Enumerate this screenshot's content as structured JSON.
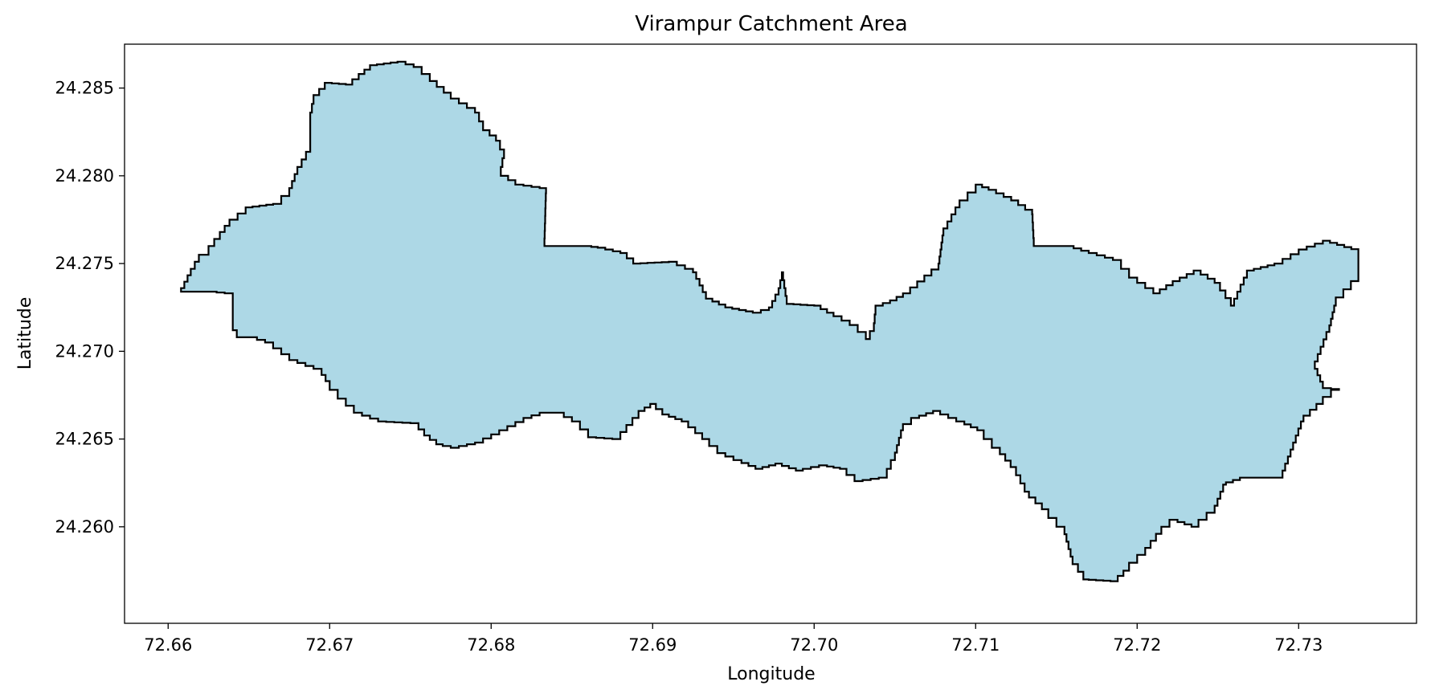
{
  "chart_data": {
    "type": "map",
    "title": "Virampur Catchment Area",
    "xlabel": "Longitude",
    "ylabel": "Latitude",
    "xlim": [
      72.6573,
      72.7373
    ],
    "ylim": [
      24.2545,
      24.2875
    ],
    "xticks": [
      "72.66",
      "72.67",
      "72.68",
      "72.69",
      "72.70",
      "72.71",
      "72.72",
      "72.73"
    ],
    "yticks": [
      "24.260",
      "24.265",
      "24.270",
      "24.275",
      "24.280",
      "24.285"
    ],
    "grid": false,
    "legend": "none",
    "fill_color": "#add8e6",
    "edge_color": "#000000",
    "polygon": [
      [
        72.6608,
        24.2736
      ],
      [
        72.6614,
        24.2747
      ],
      [
        72.6619,
        24.2755
      ],
      [
        72.6625,
        24.276
      ],
      [
        72.6632,
        24.2768
      ],
      [
        72.6638,
        24.2775
      ],
      [
        72.6648,
        24.2782
      ],
      [
        72.6665,
        24.2784
      ],
      [
        72.6675,
        24.2793
      ],
      [
        72.668,
        24.2805
      ],
      [
        72.6688,
        24.2818
      ],
      [
        72.6688,
        24.2836
      ],
      [
        72.669,
        24.2846
      ],
      [
        72.6697,
        24.2853
      ],
      [
        72.671,
        24.2852
      ],
      [
        72.6718,
        24.2858
      ],
      [
        72.6725,
        24.2863
      ],
      [
        72.6742,
        24.2865
      ],
      [
        72.6752,
        24.2862
      ],
      [
        72.6762,
        24.2854
      ],
      [
        72.6775,
        24.2844
      ],
      [
        72.679,
        24.2836
      ],
      [
        72.6795,
        24.2826
      ],
      [
        72.6803,
        24.282
      ],
      [
        72.6808,
        24.281
      ],
      [
        72.6806,
        24.28
      ],
      [
        72.6815,
        24.2795
      ],
      [
        72.683,
        24.2793
      ],
      [
        72.6834,
        24.279
      ],
      [
        72.6833,
        24.276
      ],
      [
        72.6858,
        24.276
      ],
      [
        72.6866,
        24.2759
      ],
      [
        72.688,
        24.2756
      ],
      [
        72.6888,
        24.275
      ],
      [
        72.691,
        24.2751
      ],
      [
        72.6925,
        24.2745
      ],
      [
        72.6933,
        24.273
      ],
      [
        72.6945,
        24.2725
      ],
      [
        72.6962,
        24.2722
      ],
      [
        72.6972,
        24.2725
      ],
      [
        72.6978,
        24.2736
      ],
      [
        72.698,
        24.2745
      ],
      [
        72.6983,
        24.2727
      ],
      [
        72.7,
        24.2726
      ],
      [
        72.7012,
        24.272
      ],
      [
        72.7022,
        24.2715
      ],
      [
        72.7032,
        24.2707
      ],
      [
        72.7037,
        24.2716
      ],
      [
        72.7038,
        24.2726
      ],
      [
        72.7047,
        24.2729
      ],
      [
        72.7055,
        24.2733
      ],
      [
        72.7077,
        24.275
      ],
      [
        72.708,
        24.277
      ],
      [
        72.709,
        24.2786
      ],
      [
        72.71,
        24.2795
      ],
      [
        72.7108,
        24.2792
      ],
      [
        72.7122,
        24.2786
      ],
      [
        72.7135,
        24.2778
      ],
      [
        72.7136,
        24.276
      ],
      [
        72.7156,
        24.276
      ],
      [
        72.717,
        24.2756
      ],
      [
        72.7185,
        24.2752
      ],
      [
        72.7195,
        24.2742
      ],
      [
        72.721,
        24.2733
      ],
      [
        72.7222,
        24.274
      ],
      [
        72.7235,
        24.2746
      ],
      [
        72.7248,
        24.2739
      ],
      [
        72.7258,
        24.2726
      ],
      [
        72.7268,
        24.2746
      ],
      [
        72.7285,
        24.275
      ],
      [
        72.73,
        24.2758
      ],
      [
        72.7315,
        24.2763
      ],
      [
        72.7337,
        24.2757
      ],
      [
        72.7337,
        24.274
      ],
      [
        72.7323,
        24.2726
      ],
      [
        72.7319,
        24.2711
      ],
      [
        72.731,
        24.269
      ],
      [
        72.7315,
        24.2679
      ],
      [
        72.7325,
        24.2678
      ],
      [
        72.7315,
        24.267
      ],
      [
        72.7303,
        24.266
      ],
      [
        72.7295,
        24.264
      ],
      [
        72.729,
        24.2628
      ],
      [
        72.7268,
        24.2628
      ],
      [
        72.7255,
        24.2624
      ],
      [
        72.7248,
        24.2608
      ],
      [
        72.7238,
        24.26
      ],
      [
        72.7225,
        24.2604
      ],
      [
        72.7215,
        24.2596
      ],
      [
        72.7205,
        24.2584
      ],
      [
        72.7195,
        24.2575
      ],
      [
        72.7188,
        24.2569
      ],
      [
        72.717,
        24.257
      ],
      [
        72.716,
        24.2583
      ],
      [
        72.7155,
        24.26
      ],
      [
        72.7145,
        24.261
      ],
      [
        72.7133,
        24.262
      ],
      [
        72.7125,
        24.2634
      ],
      [
        72.7115,
        24.2645
      ],
      [
        72.7105,
        24.2655
      ],
      [
        72.7093,
        24.266
      ],
      [
        72.7078,
        24.2666
      ],
      [
        72.7065,
        24.2662
      ],
      [
        72.7055,
        24.2655
      ],
      [
        72.705,
        24.2638
      ],
      [
        72.7045,
        24.2628
      ],
      [
        72.703,
        24.2626
      ],
      [
        72.702,
        24.2633
      ],
      [
        72.7008,
        24.2635
      ],
      [
        72.6993,
        24.2632
      ],
      [
        72.698,
        24.2636
      ],
      [
        72.6968,
        24.2633
      ],
      [
        72.6955,
        24.2638
      ],
      [
        72.6945,
        24.2642
      ],
      [
        72.6935,
        24.265
      ],
      [
        72.6922,
        24.266
      ],
      [
        72.691,
        24.2664
      ],
      [
        72.6902,
        24.267
      ],
      [
        72.6895,
        24.2666
      ],
      [
        72.688,
        24.265
      ],
      [
        72.6865,
        24.2651
      ],
      [
        72.6855,
        24.266
      ],
      [
        72.6845,
        24.2665
      ],
      [
        72.6835,
        24.2665
      ],
      [
        72.6825,
        24.2662
      ],
      [
        72.681,
        24.2655
      ],
      [
        72.6795,
        24.2648
      ],
      [
        72.678,
        24.2645
      ],
      [
        72.677,
        24.2647
      ],
      [
        72.6762,
        24.2652
      ],
      [
        72.6755,
        24.2659
      ],
      [
        72.6735,
        24.266
      ],
      [
        72.672,
        24.2665
      ],
      [
        72.671,
        24.2673
      ],
      [
        72.67,
        24.2683
      ],
      [
        72.6695,
        24.269
      ],
      [
        72.668,
        24.2695
      ],
      [
        72.6665,
        24.2705
      ],
      [
        72.6655,
        24.2708
      ],
      [
        72.6645,
        24.2708
      ],
      [
        72.664,
        24.2716
      ],
      [
        72.664,
        24.2733
      ],
      [
        72.663,
        24.2734
      ],
      [
        72.6608,
        24.2734
      ]
    ]
  }
}
